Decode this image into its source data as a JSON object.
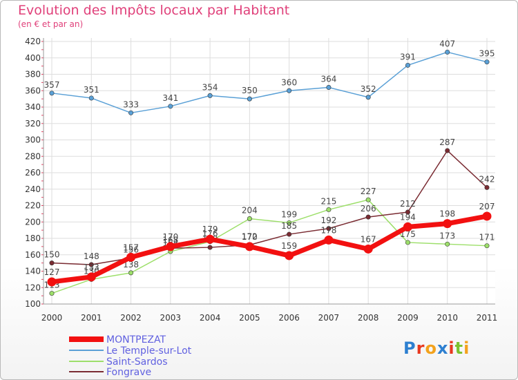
{
  "chart_data": {
    "type": "line",
    "title": "Evolution des Impôts locaux par Habitant",
    "subtitle": "(en € et par an)",
    "xlabel": "",
    "ylabel": "",
    "x": [
      "2000",
      "2001",
      "2002",
      "2003",
      "2004",
      "2005",
      "2006",
      "2007",
      "2008",
      "2009",
      "2010",
      "2011"
    ],
    "ylim": [
      100,
      420
    ],
    "yticks": [
      100,
      120,
      140,
      160,
      180,
      200,
      220,
      240,
      260,
      280,
      300,
      320,
      340,
      360,
      380,
      400,
      420
    ],
    "grid": true,
    "series": [
      {
        "name": "Le Temple-sur-Lot",
        "color": "#5aa0d6",
        "values": [
          357,
          351,
          333,
          341,
          354,
          350,
          360,
          364,
          352,
          391,
          407,
          395
        ]
      },
      {
        "name": "Saint-Sardos",
        "color": "#9ddf6a",
        "values": [
          113,
          130,
          138,
          164,
          176,
          204,
          199,
          215,
          227,
          175,
          173,
          171
        ]
      },
      {
        "name": "Fongrave",
        "color": "#7a2b32",
        "values": [
          150,
          148,
          156,
          168,
          169,
          172,
          185,
          192,
          206,
          212,
          287,
          242
        ]
      },
      {
        "name": "MONTPEZAT",
        "color": "#f21010",
        "values": [
          127,
          133,
          157,
          170,
          179,
          170,
          159,
          178,
          167,
          194,
          198,
          207
        ]
      }
    ],
    "legend": [
      "MONTPEZAT",
      "Le Temple-sur-Lot",
      "Saint-Sardos",
      "Fongrave"
    ]
  },
  "logo": {
    "letters": [
      "P",
      "r",
      "o",
      "x",
      "i",
      "t",
      "i"
    ],
    "colors": [
      "#2d7fd0",
      "#e8381f",
      "#f3a21c",
      "#2d7fd0",
      "#e8381f",
      "#7cc230",
      "#f3a21c"
    ]
  }
}
